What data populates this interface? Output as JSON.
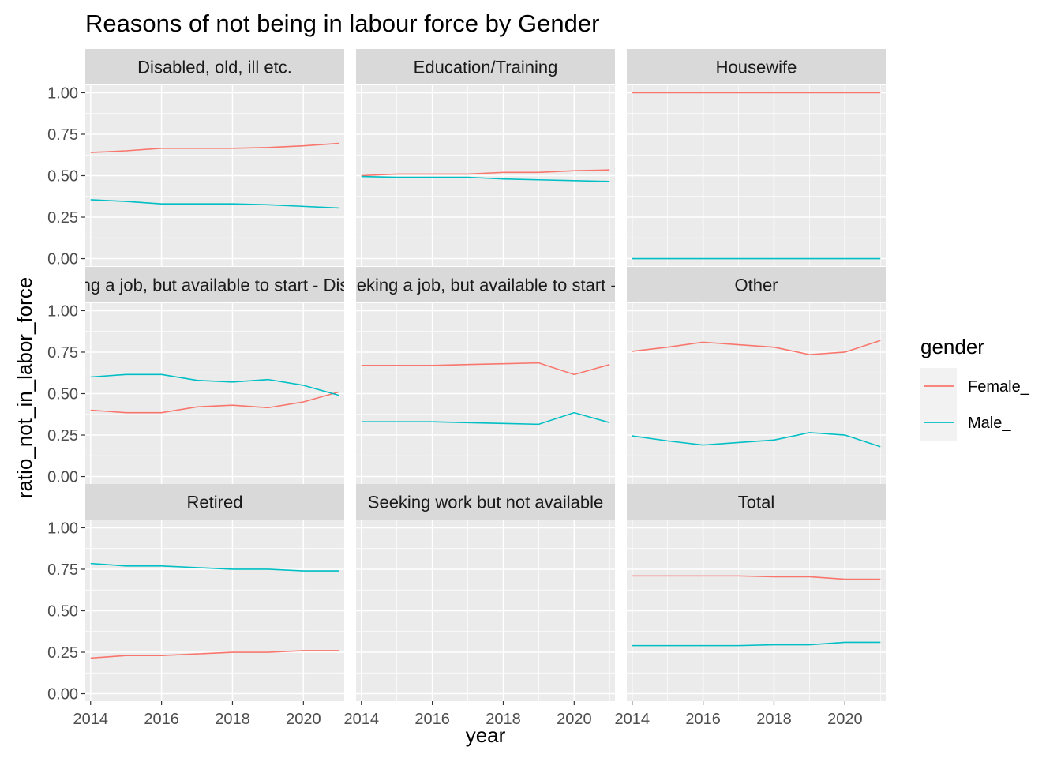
{
  "chart_data": {
    "type": "line",
    "title": "Reasons of not being in labour force by Gender",
    "xlabel": "year",
    "ylabel": "ratio_not_in_labor_force",
    "xlim": [
      2013.85,
      2021.15
    ],
    "ylim": [
      -0.045,
      1.045
    ],
    "x_ticks": [
      2014,
      2016,
      2018,
      2020
    ],
    "y_ticks": [
      0,
      0.25,
      0.5,
      0.75,
      1
    ],
    "y_tick_labels": [
      "0.00",
      "0.25",
      "0.50",
      "0.75",
      "1.00"
    ],
    "grid": true,
    "legend": {
      "title": "gender",
      "placement": "right",
      "entries": [
        {
          "name": "Female_",
          "color": "#F8766D"
        },
        {
          "name": "Male_",
          "color": "#00BFC4"
        }
      ]
    },
    "x": [
      2014,
      2015,
      2016,
      2017,
      2018,
      2019,
      2020,
      2021
    ],
    "panels": [
      {
        "label": "Disabled, old, ill etc.",
        "series": [
          {
            "name": "Female_",
            "values": [
              0.64,
              0.65,
              0.665,
              0.665,
              0.665,
              0.67,
              0.68,
              0.695
            ]
          },
          {
            "name": "Male_",
            "values": [
              0.355,
              0.345,
              0.33,
              0.33,
              0.33,
              0.325,
              0.315,
              0.305
            ]
          }
        ]
      },
      {
        "label": "Education/Training",
        "series": [
          {
            "name": "Female_",
            "values": [
              0.5,
              0.51,
              0.51,
              0.51,
              0.52,
              0.52,
              0.53,
              0.535
            ]
          },
          {
            "name": "Male_",
            "values": [
              0.495,
              0.49,
              0.49,
              0.49,
              0.48,
              0.475,
              0.47,
              0.465
            ]
          }
        ]
      },
      {
        "label": "Housewife",
        "series": [
          {
            "name": "Female_",
            "values": [
              1,
              1,
              1,
              1,
              1,
              1,
              1,
              1
            ]
          },
          {
            "name": "Male_",
            "values": [
              0,
              0,
              0,
              0,
              0,
              0,
              0,
              0
            ]
          }
        ]
      },
      {
        "label": "Not seeking a job, but available to start - Discouraged",
        "series": [
          {
            "name": "Female_",
            "values": [
              0.4,
              0.385,
              0.385,
              0.42,
              0.43,
              0.415,
              0.45,
              0.51
            ]
          },
          {
            "name": "Male_",
            "values": [
              0.6,
              0.615,
              0.615,
              0.58,
              0.57,
              0.585,
              0.55,
              0.49
            ]
          }
        ]
      },
      {
        "label": "Not seeking a job, but available to start - Other",
        "series": [
          {
            "name": "Female_",
            "values": [
              0.67,
              0.67,
              0.67,
              0.675,
              0.68,
              0.685,
              0.615,
              0.675
            ]
          },
          {
            "name": "Male_",
            "values": [
              0.33,
              0.33,
              0.33,
              0.325,
              0.32,
              0.315,
              0.385,
              0.325
            ]
          }
        ]
      },
      {
        "label": "Other",
        "series": [
          {
            "name": "Female_",
            "values": [
              0.755,
              0.78,
              0.81,
              0.795,
              0.78,
              0.735,
              0.75,
              0.82
            ]
          },
          {
            "name": "Male_",
            "values": [
              0.245,
              0.215,
              0.19,
              0.205,
              0.22,
              0.265,
              0.25,
              0.18
            ]
          }
        ]
      },
      {
        "label": "Retired",
        "series": [
          {
            "name": "Female_",
            "values": [
              0.215,
              0.23,
              0.23,
              0.24,
              0.25,
              0.25,
              0.26,
              0.26
            ]
          },
          {
            "name": "Male_",
            "values": [
              0.785,
              0.77,
              0.77,
              0.76,
              0.75,
              0.75,
              0.74,
              0.74
            ]
          }
        ]
      },
      {
        "label": "Seeking work but not available",
        "series": []
      },
      {
        "label": "Total",
        "series": [
          {
            "name": "Female_",
            "values": [
              0.71,
              0.71,
              0.71,
              0.71,
              0.705,
              0.705,
              0.69,
              0.69
            ]
          },
          {
            "name": "Male_",
            "values": [
              0.29,
              0.29,
              0.29,
              0.29,
              0.295,
              0.295,
              0.31,
              0.31
            ]
          }
        ]
      }
    ]
  }
}
